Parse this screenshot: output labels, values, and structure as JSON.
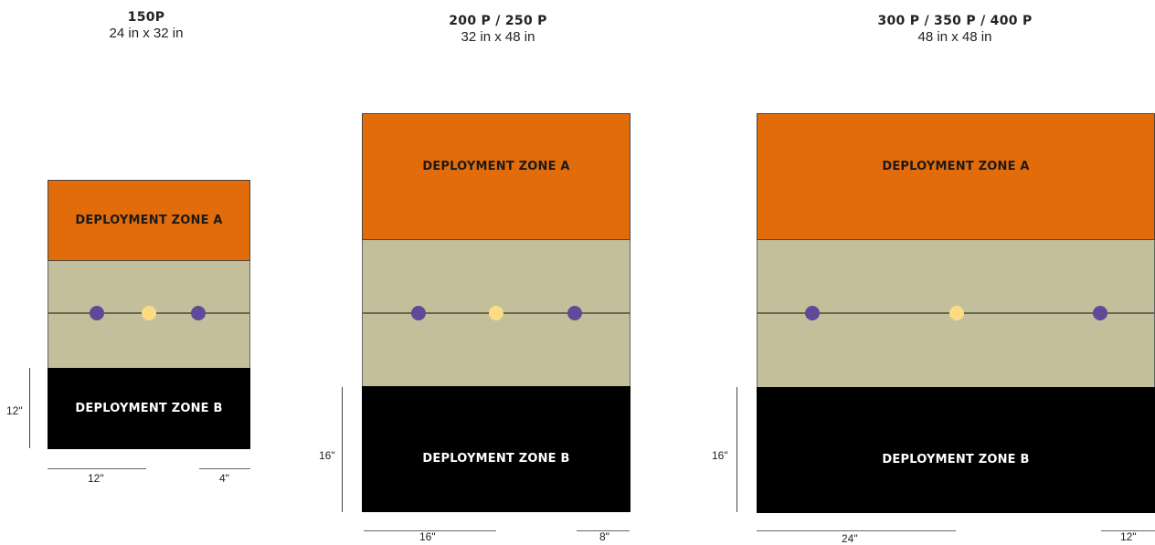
{
  "maps": [
    {
      "name": "150P",
      "size": "24 in x 32 in",
      "zone_a": "DEPLOYMENT ZONE A",
      "zone_b": "DEPLOYMENT ZONE B",
      "depth_label": "12\"",
      "width_label_left": "12\"",
      "width_label_right": "4\""
    },
    {
      "name": "200 P / 250 P",
      "size": "32 in x 48 in",
      "zone_a": "DEPLOYMENT ZONE A",
      "zone_b": "DEPLOYMENT ZONE B",
      "depth_label": "16\"",
      "width_label_left": "16\"",
      "width_label_right": "8\""
    },
    {
      "name": "300 P / 350 P / 400 P",
      "size": "48 in x 48 in",
      "zone_a": "DEPLOYMENT ZONE A",
      "zone_b": "DEPLOYMENT ZONE B",
      "depth_label": "16\"",
      "width_label_left": "24\"",
      "width_label_right": "12\""
    }
  ],
  "colors": {
    "zone_a": "#e36c0a",
    "no_mans_land": "#c4bf9b",
    "zone_b": "#000000",
    "objective_purple": "#5e4a99",
    "objective_yellow": "#fbdc82"
  }
}
